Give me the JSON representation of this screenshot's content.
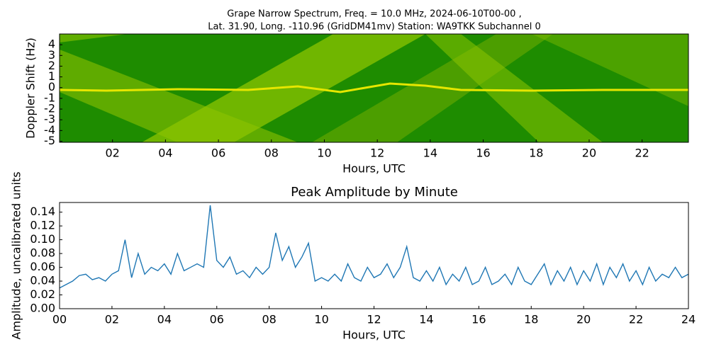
{
  "chart_data": [
    {
      "type": "spectrogram",
      "title": "Grape Narrow Spectrum, Freq. = 10.0 MHz, 2024-06-10T00-00 ,",
      "subtitle": "Lat.  31.90, Long. -110.96 (GridDM41mv) Station: WA9TKK Subchannel 0",
      "xlabel": "Hours, UTC",
      "ylabel": "Doppler Shift (Hz)",
      "xlim": [
        0,
        23.75
      ],
      "ylim": [
        -5.1,
        5
      ],
      "xticks": [
        {
          "value": 2,
          "label": "02"
        },
        {
          "value": 4,
          "label": "04"
        },
        {
          "value": 6,
          "label": "06"
        },
        {
          "value": 8,
          "label": "08"
        },
        10,
        12,
        14,
        16,
        18,
        20,
        22
      ],
      "yticks": [
        -5,
        -4,
        -3,
        -2,
        -1,
        0,
        1,
        2,
        3,
        4
      ]
    },
    {
      "type": "line",
      "title": "Peak Amplitude by Minute",
      "xlabel": "Hours, UTC",
      "ylabel": "Amplitude, uncalibrated units",
      "xlim": [
        0,
        24
      ],
      "ylim": [
        0,
        0.154
      ],
      "xticks": [
        {
          "value": 0,
          "label": "00"
        },
        {
          "value": 2,
          "label": "02"
        },
        {
          "value": 4,
          "label": "04"
        },
        {
          "value": 6,
          "label": "06"
        },
        {
          "value": 8,
          "label": "08"
        },
        10,
        12,
        14,
        16,
        18,
        20,
        22,
        24
      ],
      "yticks": [
        {
          "value": 0,
          "label": "0.00"
        },
        {
          "value": 0.02,
          "label": "0.02"
        },
        {
          "value": 0.04,
          "label": "0.04"
        },
        {
          "value": 0.06,
          "label": "0.06"
        },
        {
          "value": 0.08,
          "label": "0.08"
        },
        {
          "value": 0.1,
          "label": "0.10"
        },
        {
          "value": 0.12,
          "label": "0.12"
        },
        {
          "value": 0.14,
          "label": "0.14"
        }
      ],
      "color": "#1f77b4",
      "x": [
        0,
        0.25,
        0.5,
        0.75,
        1,
        1.25,
        1.5,
        1.75,
        2,
        2.25,
        2.5,
        2.75,
        3,
        3.25,
        3.5,
        3.75,
        4,
        4.25,
        4.5,
        4.75,
        5,
        5.25,
        5.5,
        5.75,
        6,
        6.25,
        6.5,
        6.75,
        7,
        7.25,
        7.5,
        7.75,
        8,
        8.25,
        8.5,
        8.75,
        9,
        9.25,
        9.5,
        9.75,
        10,
        10.25,
        10.5,
        10.75,
        11,
        11.25,
        11.5,
        11.75,
        12,
        12.25,
        12.5,
        12.75,
        13,
        13.25,
        13.5,
        13.75,
        14,
        14.25,
        14.5,
        14.75,
        15,
        15.25,
        15.5,
        15.75,
        16,
        16.25,
        16.5,
        16.75,
        17,
        17.25,
        17.5,
        17.75,
        18,
        18.25,
        18.5,
        18.75,
        19,
        19.25,
        19.5,
        19.75,
        20,
        20.25,
        20.5,
        20.75,
        21,
        21.25,
        21.5,
        21.75,
        22,
        22.25,
        22.5,
        22.75,
        23,
        23.25,
        23.5,
        23.75,
        24
      ],
      "values": [
        0.03,
        0.035,
        0.04,
        0.048,
        0.05,
        0.042,
        0.045,
        0.04,
        0.05,
        0.055,
        0.1,
        0.045,
        0.08,
        0.05,
        0.06,
        0.055,
        0.065,
        0.05,
        0.08,
        0.055,
        0.06,
        0.065,
        0.06,
        0.15,
        0.07,
        0.06,
        0.075,
        0.05,
        0.055,
        0.045,
        0.06,
        0.05,
        0.06,
        0.11,
        0.07,
        0.09,
        0.06,
        0.075,
        0.095,
        0.04,
        0.045,
        0.04,
        0.05,
        0.04,
        0.065,
        0.045,
        0.04,
        0.06,
        0.045,
        0.05,
        0.065,
        0.045,
        0.06,
        0.09,
        0.045,
        0.04,
        0.055,
        0.04,
        0.06,
        0.035,
        0.05,
        0.04,
        0.06,
        0.035,
        0.04,
        0.06,
        0.035,
        0.04,
        0.05,
        0.035,
        0.06,
        0.04,
        0.035,
        0.05,
        0.065,
        0.035,
        0.055,
        0.04,
        0.06,
        0.035,
        0.055,
        0.04,
        0.065,
        0.035,
        0.06,
        0.045,
        0.065,
        0.04,
        0.055,
        0.035,
        0.06,
        0.04,
        0.05,
        0.045,
        0.06,
        0.045,
        0.05
      ]
    }
  ]
}
